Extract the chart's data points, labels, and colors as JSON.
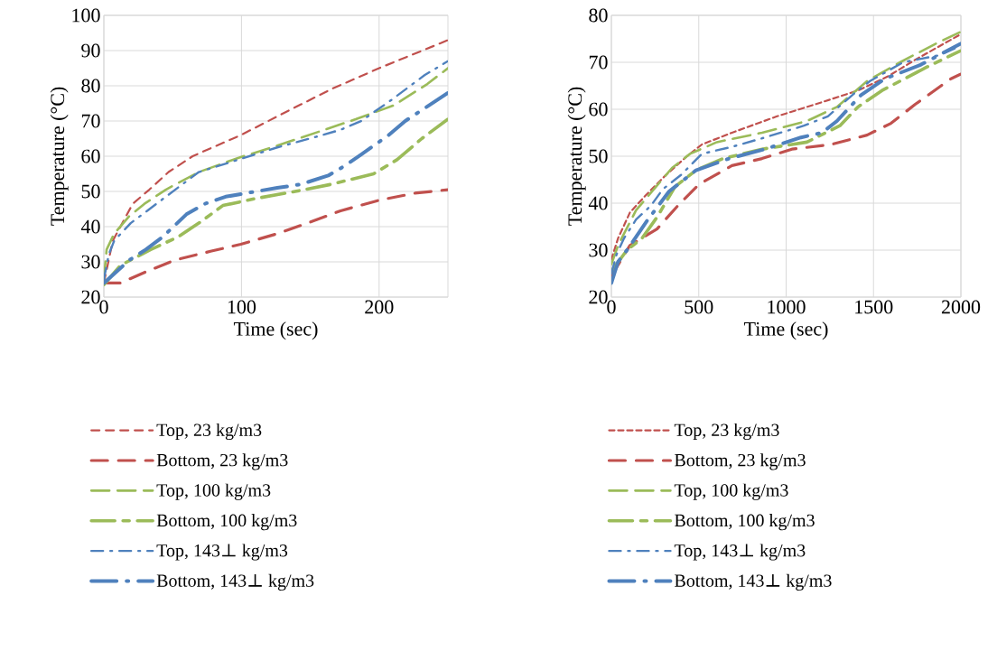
{
  "chart_data": [
    {
      "type": "line",
      "xlabel": "Time (sec)",
      "ylabel": "Temperature (°C)",
      "xlim": [
        0,
        250
      ],
      "xticks": [
        0,
        100,
        200
      ],
      "ylim": [
        20,
        100
      ],
      "yticks": [
        20,
        30,
        40,
        50,
        60,
        70,
        80,
        90,
        100
      ],
      "grid": true,
      "legend": "bottom",
      "marker": "none",
      "series": [
        {
          "name": "Top, 23 kg/m3",
          "color": "#c0504d",
          "line_style": "dashed",
          "x": [
            0,
            6.5,
            21,
            33,
            47,
            64.5,
            99.5,
            132,
            165,
            200,
            244,
            250
          ],
          "values": [
            24,
            36,
            46.5,
            50.5,
            55.5,
            60,
            66,
            72.5,
            79,
            85,
            92,
            93
          ]
        },
        {
          "name": "Bottom, 23 kg/m3",
          "color": "#c0504d",
          "line_style": "dashed",
          "x": [
            0,
            12,
            29.5,
            51.5,
            77.5,
            99.5,
            126,
            148,
            172,
            200,
            226,
            250
          ],
          "values": [
            24,
            24,
            27,
            30.5,
            33,
            35,
            38,
            41,
            44.5,
            47.5,
            49.5,
            50.5
          ]
        },
        {
          "name": "Top, 100 kg/m3",
          "color": "#9bbb59",
          "line_style": "dashed",
          "x": [
            0,
            2,
            7.5,
            18.5,
            29.5,
            45,
            69,
            97.5,
            126,
            156.5,
            183,
            211,
            235,
            250
          ],
          "values": [
            25,
            33.5,
            38,
            43,
            46.5,
            50.5,
            55.5,
            59.5,
            63,
            67,
            70.5,
            74.5,
            80.5,
            85
          ]
        },
        {
          "name": "Bottom, 100 kg/m3",
          "color": "#9bbb59",
          "line_style": "dashed",
          "x": [
            0,
            12,
            34,
            53.5,
            69,
            86.5,
            110.5,
            139,
            165,
            196,
            213,
            231,
            250
          ],
          "values": [
            23.5,
            29,
            33.5,
            37,
            41,
            46,
            48,
            50,
            52,
            55,
            59,
            65,
            70.5
          ]
        },
        {
          "name": "Top, 143⊥ kg/m3",
          "color": "#4f81bd",
          "line_style": "dashed",
          "x": [
            0,
            3.5,
            7.5,
            19.5,
            31.5,
            45,
            69,
            97.5,
            126,
            154,
            172,
            187,
            209,
            233,
            250
          ],
          "values": [
            25,
            32,
            36,
            41,
            44.5,
            48.5,
            55.5,
            59,
            62.5,
            65.5,
            67.5,
            70,
            76,
            83,
            87
          ]
        },
        {
          "name": "Bottom, 143⊥ kg/m3",
          "color": "#4f81bd",
          "line_style": "dashed",
          "x": [
            0,
            18.5,
            30.5,
            42.5,
            60,
            73.5,
            88.5,
            110.5,
            126,
            143,
            163,
            176,
            187,
            207,
            219,
            250
          ],
          "values": [
            24,
            30.5,
            33.5,
            37,
            43.5,
            46.5,
            48.5,
            50,
            51,
            52,
            54.5,
            57.5,
            60.5,
            66,
            70,
            78
          ]
        }
      ]
    },
    {
      "type": "line",
      "xlabel": "Time (sec)",
      "ylabel": "Temperature (°C)",
      "xlim": [
        0,
        2000
      ],
      "xticks": [
        0,
        500,
        1000,
        1500,
        2000
      ],
      "ylim": [
        20,
        80
      ],
      "yticks": [
        20,
        30,
        40,
        50,
        60,
        70,
        80
      ],
      "grid": true,
      "legend": "bottom",
      "marker": "none",
      "series": [
        {
          "name": "Top, 23 kg/m3",
          "color": "#c0504d",
          "line_style": "dotted",
          "x": [
            0,
            38,
            106,
            192,
            312,
            433,
            518,
            690,
            948,
            1205,
            1411,
            1583,
            1737,
            2000
          ],
          "values": [
            28,
            32.5,
            38,
            41.5,
            46,
            50,
            52.5,
            55,
            58.5,
            61.5,
            64,
            67,
            70.5,
            76
          ]
        },
        {
          "name": "Bottom, 23 kg/m3",
          "color": "#c0504d",
          "line_style": "dashed",
          "x": [
            0,
            106,
            261,
            381,
            501,
            690,
            862,
            1033,
            1257,
            1463,
            1600,
            1737,
            1943,
            2000
          ],
          "values": [
            24.5,
            31,
            34.5,
            39.5,
            44,
            48,
            49.5,
            51.5,
            52.5,
            54.5,
            57,
            61,
            66.5,
            67.5
          ]
        },
        {
          "name": "Top, 100 kg/m3",
          "color": "#9bbb59",
          "line_style": "dashed",
          "x": [
            0,
            38,
            141,
            244,
            347,
            450,
            604,
            862,
            1119,
            1291,
            1463,
            1652,
            1858,
            2000
          ],
          "values": [
            27,
            31,
            38.5,
            43,
            47.5,
            50.5,
            53,
            55,
            57.5,
            60.5,
            66,
            70,
            74,
            76.5
          ]
        },
        {
          "name": "Bottom, 100 kg/m3",
          "color": "#9bbb59",
          "line_style": "dashed",
          "x": [
            0,
            89,
            175,
            261,
            364,
            484,
            639,
            862,
            1119,
            1308,
            1411,
            1549,
            1806,
            2000
          ],
          "values": [
            25.5,
            30,
            32.5,
            37,
            43.5,
            47,
            49.5,
            51.5,
            53,
            56.5,
            60.5,
            64,
            69,
            72.5
          ]
        },
        {
          "name": "Top, 143⊥ kg/m3",
          "color": "#4f81bd",
          "line_style": "dashed",
          "x": [
            0,
            29,
            72,
            141,
            227,
            295,
            398,
            518,
            690,
            879,
            1102,
            1239,
            1394,
            1480,
            1669,
            1875,
            2000
          ],
          "values": [
            25,
            29,
            32.5,
            36.5,
            39.5,
            43,
            46,
            50.5,
            52,
            54,
            56.5,
            58.5,
            63.5,
            66,
            70,
            71.5,
            73.5
          ]
        },
        {
          "name": "Bottom, 143⊥ kg/m3",
          "color": "#4f81bd",
          "line_style": "dashed",
          "x": [
            0,
            38,
            89,
            209,
            330,
            484,
            673,
            879,
            1085,
            1205,
            1291,
            1428,
            1566,
            1772,
            2000
          ],
          "values": [
            23,
            27.5,
            30,
            36.5,
            42.5,
            47,
            49.5,
            51.5,
            54,
            55,
            57.5,
            63,
            66.5,
            69.5,
            74
          ]
        }
      ]
    }
  ]
}
